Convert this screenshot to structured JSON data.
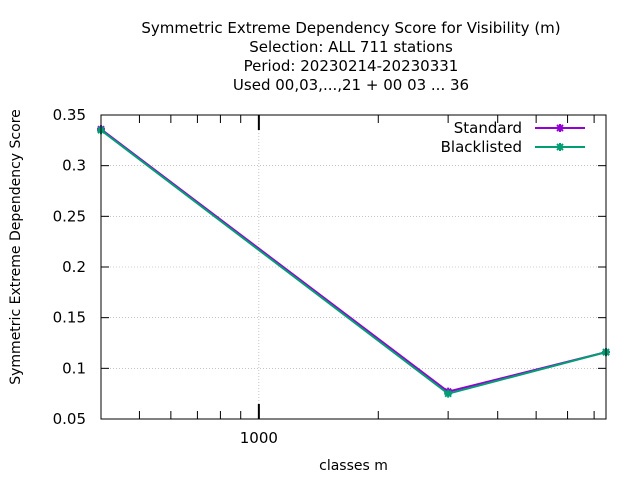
{
  "chart_data": {
    "type": "line",
    "title_lines": [
      "Symmetric Extreme Dependency Score  for Visibility (m)",
      "Selection: ALL    711 stations",
      "Period: 20230214-20230331",
      "Used  00,03,...,21  + 00 03 ... 36"
    ],
    "xlabel": "classes m",
    "ylabel": "Symmetric Extreme Dependency Score",
    "x_scale": "log",
    "xlim": [
      400,
      7500
    ],
    "ylim": [
      0.05,
      0.35
    ],
    "x_major_ticks": [
      {
        "value": 1000,
        "label": "1000"
      }
    ],
    "y_ticks": [
      {
        "value": 0.05,
        "label": "0.05"
      },
      {
        "value": 0.1,
        "label": "0.1"
      },
      {
        "value": 0.15,
        "label": "0.15"
      },
      {
        "value": 0.2,
        "label": "0.2"
      },
      {
        "value": 0.25,
        "label": "0.25"
      },
      {
        "value": 0.3,
        "label": "0.3"
      },
      {
        "value": 0.35,
        "label": "0.35"
      }
    ],
    "grid": true,
    "legend_position": "top-right",
    "series": [
      {
        "name": "Standard",
        "color": "#9400d3",
        "x": [
          400,
          3000,
          7500
        ],
        "values": [
          0.336,
          0.077,
          0.116
        ]
      },
      {
        "name": "Blacklisted",
        "color": "#009e73",
        "x": [
          400,
          3000,
          7500
        ],
        "values": [
          0.335,
          0.075,
          0.116
        ]
      }
    ]
  }
}
